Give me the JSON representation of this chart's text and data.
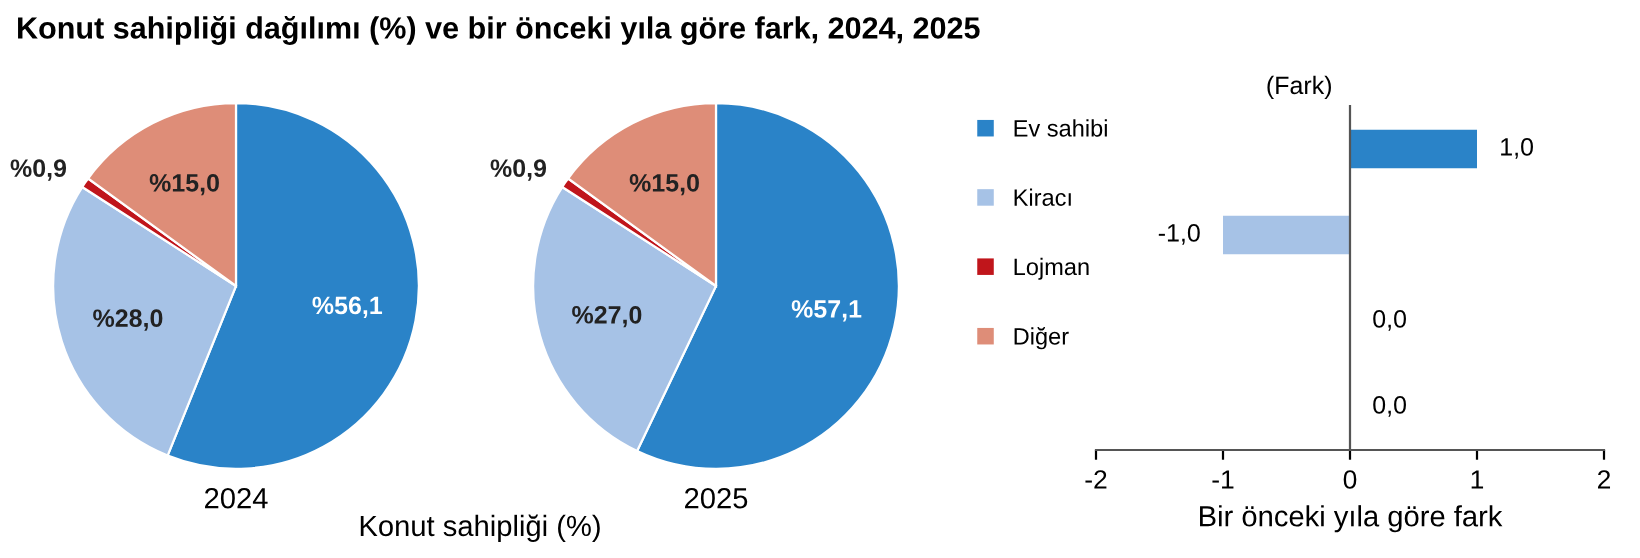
{
  "chart_data": [
    {
      "type": "pie",
      "title": "Konut sahipliği dağılımı (%) ve bir önceki yıla göre fark, 2024, 2025",
      "xlabel": "2024",
      "legend": "right",
      "annotations": [
        "Konut sahipliği (%)"
      ],
      "categories": [
        "Ev sahibi",
        "Kiracı",
        "Lojman",
        "Diğer"
      ],
      "values": [
        56.1,
        28.0,
        0.9,
        15.0
      ],
      "colors": [
        "#2a83c8",
        "#a6c2e6",
        "#c0151b",
        "#de8d78"
      ],
      "value_labels": [
        "%56,1",
        "%28,0",
        "%0,9",
        "%15,0"
      ]
    },
    {
      "type": "pie",
      "xlabel": "2025",
      "categories": [
        null,
        null,
        null,
        null
      ],
      "values": [
        57.1,
        27.0,
        0.9,
        15.0
      ],
      "colors": [
        "#2a83c8",
        "#a6c2e6",
        "#c0151b",
        "#de8d78"
      ],
      "value_labels": [
        "%57,1",
        "%27,0",
        "%0,9",
        "%15,0"
      ]
    },
    {
      "type": "bar",
      "orientation": "horizontal",
      "ylabel": "(Fark)",
      "xlabel": "Bir önceki yıla göre fark",
      "categories": [
        null,
        null,
        null,
        null
      ],
      "values": [
        1.0,
        -1.0,
        0.0,
        0.0
      ],
      "colors": [
        "#2a83c8",
        "#a6c2e6",
        "#c0151b",
        "#de8d78"
      ],
      "value_labels": [
        "1,0",
        "-1,0",
        "0,0",
        "0,0"
      ],
      "xlim": [
        -2,
        2
      ],
      "xticks": [
        -2,
        -1,
        0,
        1,
        2
      ]
    }
  ]
}
